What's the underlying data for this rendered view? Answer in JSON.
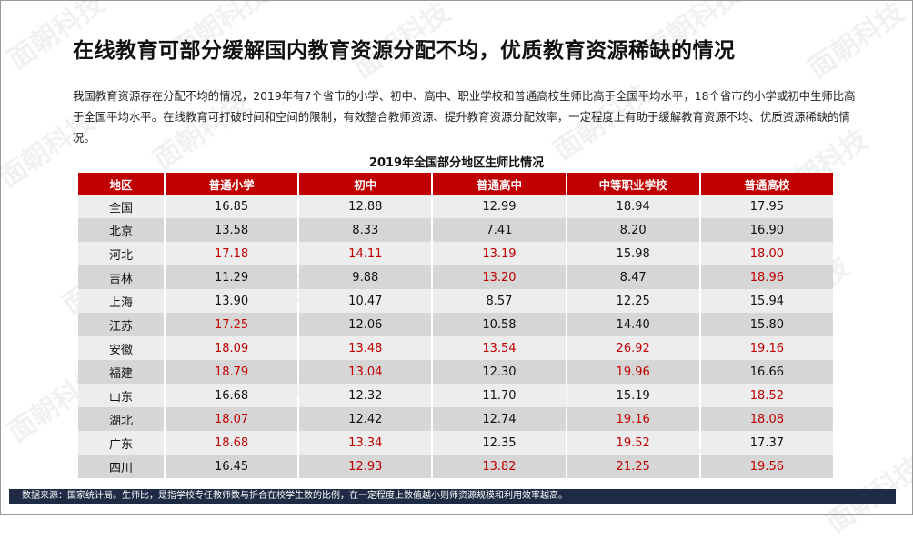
{
  "title": "在线教育可部分缓解国内教育资源分配不均，优质教育资源稀缺的情况",
  "paragraph": "我国教育资源存在分配不均的情况，2019年有7个省市的小学、初中、高中、职业学校和普通高校生师比高于全国平均水平，18个省市的小学或初中生师比高于全国平均水平。在线教育可打破时间和空间的限制，有效整合教师资源、提升教育资源分配效率，一定程度上有助于缓解教育资源不均、优质资源稀缺的情况。",
  "table_title": "2019年全国部分地区生师比情况",
  "headers": [
    "地区",
    "普通小学",
    "初中",
    "普通高中",
    "中等职业学校",
    "普通高校"
  ],
  "rows": [
    {
      "cells": [
        "全国",
        "16.85",
        "12.88",
        "12.99",
        "18.94",
        "17.95"
      ],
      "highlight": [
        false,
        false,
        false,
        false,
        false,
        false
      ]
    },
    {
      "cells": [
        "北京",
        "13.58",
        "8.33",
        "7.41",
        "8.20",
        "16.90"
      ],
      "highlight": [
        false,
        false,
        false,
        false,
        false,
        false
      ]
    },
    {
      "cells": [
        "河北",
        "17.18",
        "14.11",
        "13.19",
        "15.98",
        "18.00"
      ],
      "highlight": [
        false,
        true,
        true,
        true,
        false,
        true
      ]
    },
    {
      "cells": [
        "吉林",
        "11.29",
        "9.88",
        "13.20",
        "8.47",
        "18.96"
      ],
      "highlight": [
        false,
        false,
        false,
        true,
        false,
        true
      ]
    },
    {
      "cells": [
        "上海",
        "13.90",
        "10.47",
        "8.57",
        "12.25",
        "15.94"
      ],
      "highlight": [
        false,
        false,
        false,
        false,
        false,
        false
      ]
    },
    {
      "cells": [
        "江苏",
        "17.25",
        "12.06",
        "10.58",
        "14.40",
        "15.80"
      ],
      "highlight": [
        false,
        true,
        false,
        false,
        false,
        false
      ]
    },
    {
      "cells": [
        "安徽",
        "18.09",
        "13.48",
        "13.54",
        "26.92",
        "19.16"
      ],
      "highlight": [
        false,
        true,
        true,
        true,
        true,
        true
      ]
    },
    {
      "cells": [
        "福建",
        "18.79",
        "13.04",
        "12.30",
        "19.96",
        "16.66"
      ],
      "highlight": [
        false,
        true,
        true,
        false,
        true,
        false
      ]
    },
    {
      "cells": [
        "山东",
        "16.68",
        "12.32",
        "11.70",
        "15.19",
        "18.52"
      ],
      "highlight": [
        false,
        false,
        false,
        false,
        false,
        true
      ]
    },
    {
      "cells": [
        "湖北",
        "18.07",
        "12.42",
        "12.74",
        "19.16",
        "18.08"
      ],
      "highlight": [
        false,
        true,
        false,
        false,
        true,
        true
      ]
    },
    {
      "cells": [
        "广东",
        "18.68",
        "13.34",
        "12.35",
        "19.52",
        "17.37"
      ],
      "highlight": [
        false,
        true,
        true,
        false,
        true,
        false
      ]
    },
    {
      "cells": [
        "四川",
        "16.45",
        "12.93",
        "13.82",
        "21.25",
        "19.56"
      ],
      "highlight": [
        false,
        false,
        true,
        true,
        true,
        true
      ]
    }
  ],
  "footer": "数据来源：国家统计局。生师比，是指学校专任教师数与折合在校学生数的比例，在一定程度上数值越小则师资源规模和利用效率越高。",
  "watermark": "面朝科技",
  "colors": {
    "header_bg": "#c00000",
    "highlight_text": "#c00000",
    "footer_bg": "#1f2a44"
  }
}
